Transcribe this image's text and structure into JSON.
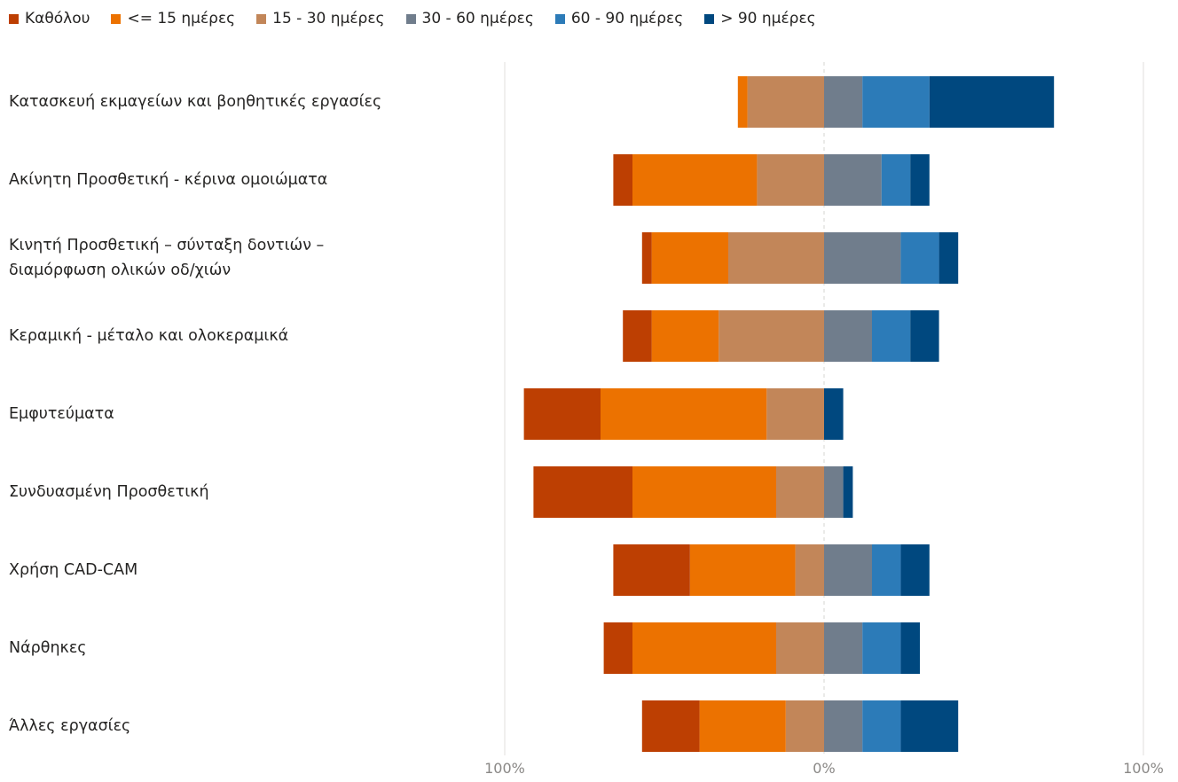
{
  "chart_data": {
    "type": "bar",
    "orientation": "horizontal",
    "stacked": "diverging",
    "xlim": [
      -100,
      100
    ],
    "x_ticks": [
      "100%",
      "0%",
      "100%"
    ],
    "legend_position": "top-left",
    "grid": true,
    "categories": [
      [
        "Κατασκευή εκμαγείων και βοηθητικές εργασίες"
      ],
      [
        "Ακίνητη Προσθετική - κέρινα ομοιώματα"
      ],
      [
        "Κινητή Προσθετική – σύνταξη δοντιών –",
        "διαμόρφωση ολικών οδ/χιών"
      ],
      [
        "Κεραμική - μέταλο και ολοκεραμικά"
      ],
      [
        "Εμφυτεύματα"
      ],
      [
        "Συνδυασμένη Προσθετική"
      ],
      [
        "Χρήση CAD-CAM"
      ],
      [
        "Νάρθηκες"
      ],
      [
        "Άλλες εργασίες"
      ]
    ],
    "series": [
      {
        "name": "Καθόλου",
        "side": "negative",
        "color": "#bd3f02",
        "values": [
          0,
          6,
          3,
          9,
          24,
          31,
          24,
          9,
          18
        ]
      },
      {
        "name": "<= 15 ημέρες",
        "side": "negative",
        "color": "#ec7200",
        "values": [
          3,
          39,
          24,
          21,
          52,
          45,
          33,
          45,
          27
        ]
      },
      {
        "name": "15 - 30 ημέρες",
        "side": "negative",
        "color": "#c28659",
        "values": [
          24,
          21,
          30,
          33,
          18,
          15,
          9,
          15,
          12
        ]
      },
      {
        "name": "30 - 60 ημέρες",
        "side": "positive",
        "color": "#707d8c",
        "values": [
          12,
          18,
          24,
          15,
          0,
          6,
          15,
          12,
          12
        ]
      },
      {
        "name": "60 - 90 ημέρες",
        "side": "positive",
        "color": "#2c7bb8",
        "values": [
          21,
          9,
          12,
          12,
          0,
          0,
          9,
          12,
          12
        ]
      },
      {
        "name": "> 90 ημέρες",
        "side": "positive",
        "color": "#00487f",
        "values": [
          39,
          6,
          6,
          9,
          6,
          3,
          9,
          6,
          18
        ]
      }
    ]
  }
}
